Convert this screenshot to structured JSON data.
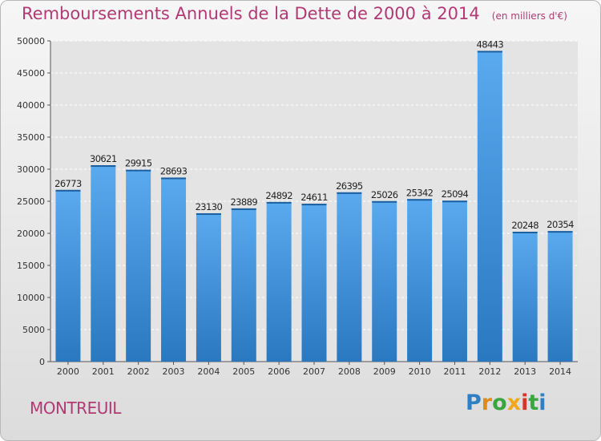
{
  "chart_data": {
    "type": "bar",
    "title": "Remboursements Annuels de la Dette de 2000 à 2014",
    "unit_note": "(en milliers d'€)",
    "categories": [
      "2000",
      "2001",
      "2002",
      "2003",
      "2004",
      "2005",
      "2006",
      "2007",
      "2008",
      "2009",
      "2010",
      "2011",
      "2012",
      "2013",
      "2014"
    ],
    "values": [
      26773,
      30621,
      29915,
      28693,
      23130,
      23889,
      24892,
      24611,
      26395,
      25026,
      25342,
      25094,
      48443,
      20248,
      20354
    ],
    "xlabel": "",
    "ylabel": "",
    "ylim": [
      0,
      50000
    ],
    "yticks": [
      0,
      5000,
      10000,
      15000,
      20000,
      25000,
      30000,
      35000,
      40000,
      45000,
      50000
    ],
    "grid": true,
    "bar_color": "#3d8fd6"
  },
  "footer": {
    "commune": "MONTREUIL",
    "logo_letters": [
      "P",
      "r",
      "o",
      "x",
      "i",
      "t",
      "i"
    ],
    "logo_colors": [
      "#2e7fc4",
      "#e08a1e",
      "#3aa640",
      "#f0a81a",
      "#d8342c",
      "#3aa640",
      "#2e7fc4"
    ]
  }
}
